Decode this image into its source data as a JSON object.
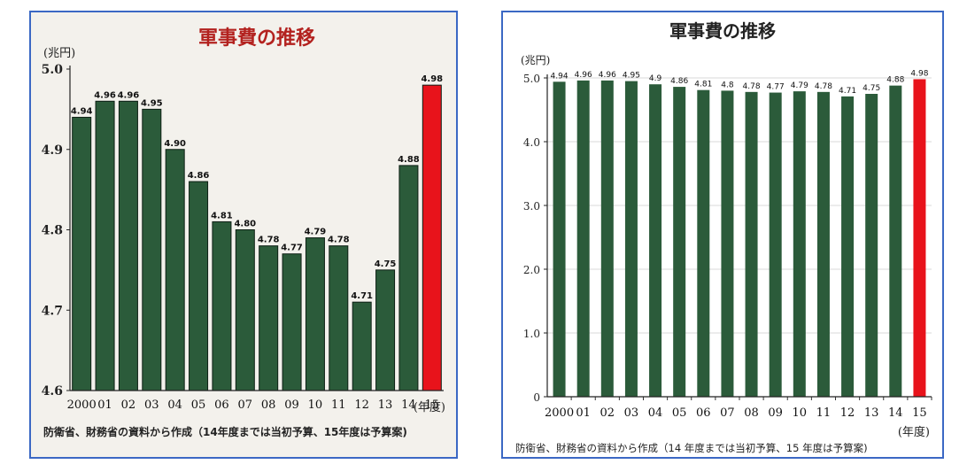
{
  "charts": [
    {
      "title": "軍事費の推移",
      "unit_label": "(兆円)",
      "x_unit": "(年度)",
      "source_note": "防衛省、財務省の資料から作成（14年度までは当初予算、15年度は予算案)",
      "y_ticks": [
        "4.6",
        "4.7",
        "4.8",
        "4.9",
        "5.0"
      ],
      "data_labels": [
        "4.94",
        "4.96",
        "4.96",
        "4.95",
        "4.90",
        "4.86",
        "4.81",
        "4.80",
        "4.78",
        "4.77",
        "4.79",
        "4.78",
        "4.71",
        "4.75",
        "4.88",
        "4.98"
      ]
    },
    {
      "title": "軍事費の推移",
      "unit_label": "(兆円)",
      "x_unit": "(年度)",
      "source_note": "防衛省、財務省の資料から作成（14 年度までは当初予算、15 年度は予算案)",
      "y_ticks": [
        "0",
        "1.0",
        "2.0",
        "3.0",
        "4.0",
        "5.0"
      ],
      "data_labels": [
        "4.94",
        "4.96",
        "4.96",
        "4.95",
        "4.9",
        "4.86",
        "4.81",
        "4.8",
        "4.78",
        "4.77",
        "4.79",
        "4.78",
        "4.71",
        "4.75",
        "4.88",
        "4.98"
      ]
    }
  ],
  "colors": {
    "bar": "#2b5b3a",
    "highlight": "#e8131b",
    "frame": "#3b68c4"
  },
  "chart_data": [
    {
      "type": "bar",
      "title": "軍事費の推移",
      "ylabel": "(兆円)",
      "xlabel": "(年度)",
      "categories": [
        "2000",
        "01",
        "02",
        "03",
        "04",
        "05",
        "06",
        "07",
        "08",
        "09",
        "10",
        "11",
        "12",
        "13",
        "14",
        "15"
      ],
      "values": [
        4.94,
        4.96,
        4.96,
        4.95,
        4.9,
        4.86,
        4.81,
        4.8,
        4.78,
        4.77,
        4.79,
        4.78,
        4.71,
        4.75,
        4.88,
        4.98
      ],
      "ylim": [
        4.6,
        5.0
      ],
      "highlight_index": 15,
      "grid": false
    },
    {
      "type": "bar",
      "title": "軍事費の推移",
      "ylabel": "(兆円)",
      "xlabel": "(年度)",
      "categories": [
        "2000",
        "01",
        "02",
        "03",
        "04",
        "05",
        "06",
        "07",
        "08",
        "09",
        "10",
        "11",
        "12",
        "13",
        "14",
        "15"
      ],
      "values": [
        4.94,
        4.96,
        4.96,
        4.95,
        4.9,
        4.86,
        4.81,
        4.8,
        4.78,
        4.77,
        4.79,
        4.78,
        4.71,
        4.75,
        4.88,
        4.98
      ],
      "ylim": [
        0,
        5.0
      ],
      "highlight_index": 15,
      "grid": true
    }
  ]
}
